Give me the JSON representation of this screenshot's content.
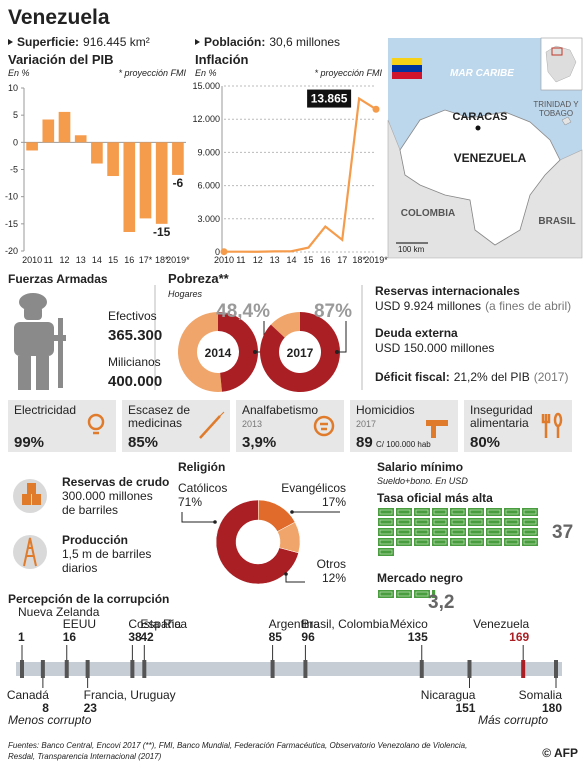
{
  "title": "Venezuela",
  "superficie": {
    "label": "Superficie:",
    "value": "916.445 km²"
  },
  "poblacion": {
    "label": "Población:",
    "value": "30,6 millones"
  },
  "chart_data": [
    {
      "type": "bar",
      "title": "Variación del PIB",
      "unit": "En %",
      "note": "* proyección FMI",
      "categories": [
        "2010",
        "11",
        "12",
        "13",
        "14",
        "15",
        "16",
        "17*",
        "18*",
        "2019*"
      ],
      "values": [
        -1.5,
        4.2,
        5.6,
        1.3,
        -3.9,
        -6.2,
        -16.5,
        -14,
        -15,
        -6
      ],
      "value_labels": [
        null,
        null,
        null,
        null,
        null,
        null,
        null,
        null,
        "-15",
        "-6"
      ],
      "color": "#f59b4c",
      "ylim": [
        -20,
        10
      ],
      "yticks": [
        -20,
        -15,
        -10,
        -5,
        0,
        5,
        10
      ]
    },
    {
      "type": "line",
      "title": "Inflación",
      "unit": "En %",
      "note": "* proyección FMI",
      "categories": [
        "2010",
        "11",
        "12",
        "13",
        "14",
        "15",
        "16",
        "17",
        "18*",
        "2019*"
      ],
      "values": [
        27,
        28,
        20,
        56,
        69,
        400,
        2300,
        1100,
        13865,
        12900
      ],
      "value_labels": [
        null,
        null,
        null,
        null,
        null,
        null,
        null,
        null,
        "13.865",
        null
      ],
      "color": "#f59b4c",
      "ylim": [
        0,
        15000
      ],
      "yticks": [
        0,
        {
          "value": 3000,
          "label": "3.000"
        },
        {
          "value": 6000,
          "label": "6.000"
        },
        {
          "value": 9000,
          "label": "9.000"
        },
        {
          "value": 12000,
          "label": "12.000"
        },
        {
          "value": 15000,
          "label": "15.000"
        }
      ],
      "grid": true
    },
    {
      "type": "ring",
      "title": "Pobreza**",
      "subtitle": "Hogares",
      "categories": [
        "2014",
        "2017"
      ],
      "values": [
        48.4,
        87
      ],
      "value_labels": [
        "48,4%",
        "87%"
      ],
      "color": "#a91f24",
      "rest_color": "#f0a56a"
    },
    {
      "type": "donut",
      "title": "Religión",
      "categories": [
        "Católicos",
        "Evangélicos",
        "Otros"
      ],
      "values": [
        71,
        17,
        12
      ],
      "value_labels": [
        "71%",
        "17%",
        "12%"
      ],
      "colors": [
        "#a91f24",
        "#e06b2b",
        "#f0a56a"
      ]
    },
    {
      "type": "pictogram",
      "title": "Salario mínimo",
      "subtitle": "Sueldo+bono. En USD",
      "categories": [
        "Tasa oficial más alta",
        "Mercado negro"
      ],
      "values": [
        37,
        3.2
      ],
      "value_labels": [
        "37",
        "3,2"
      ],
      "color": "#4a9d3f"
    },
    {
      "type": "scale",
      "title": "Percepción de la corrupción",
      "categories": [
        "Nueva Zelanda",
        "Canadá",
        "EEUU",
        "Francia, Uruguay",
        "Costa Rica",
        "España",
        "Argentina",
        "Brasil, Colombia",
        "México",
        "Nicaragua",
        "Venezuela",
        "Somalia"
      ],
      "values": [
        1,
        8,
        16,
        23,
        38,
        42,
        85,
        96,
        135,
        151,
        169,
        180
      ],
      "xlim": [
        1,
        180
      ],
      "low_label": "Menos corrupto",
      "high_label": "Más corrupto",
      "highlight": "Venezuela",
      "highlight_color": "#a91f24",
      "color": "#555555"
    }
  ],
  "fuerzas_armadas": {
    "title": "Fuerzas Armadas",
    "items": [
      {
        "label": "Efectivos",
        "value": "365.300"
      },
      {
        "label": "Milicianos",
        "value": "400.000"
      }
    ]
  },
  "economia": {
    "reservas": {
      "title": "Reservas internacionales",
      "value": "USD 9.924 millones",
      "note": "(a fines de abril)"
    },
    "deuda": {
      "title": "Deuda externa",
      "value": "USD 150.000 millones"
    },
    "deficit": {
      "title": "Déficit fiscal:",
      "value": "21,2% del PIB",
      "note": "(2017)"
    }
  },
  "indicators": [
    {
      "label": [
        "Electricidad"
      ],
      "value": "99%"
    },
    {
      "label": [
        "Escasez de",
        "medicinas"
      ],
      "value": "85%"
    },
    {
      "label": [
        "Analfabetismo"
      ],
      "year": "2013",
      "value": "3,9%"
    },
    {
      "label": [
        "Homicidios"
      ],
      "year": "2017",
      "value": "89",
      "unit": "C/ 100.000 hab"
    },
    {
      "label": [
        "Inseguridad",
        "alimentaria"
      ],
      "value": "80%"
    }
  ],
  "petroleo": [
    {
      "title": "Reservas de crudo",
      "lines": [
        "300.000 millones",
        "de barriles"
      ]
    },
    {
      "title": "Producción",
      "lines": [
        "1,5 m de barriles",
        "diarios"
      ]
    }
  ],
  "map": {
    "sea": "MAR CARIBE",
    "capital": "CARACAS",
    "trinidad": [
      "TRINIDAD Y",
      "TOBAGO"
    ],
    "country": "VENEZUELA",
    "colombia": "COLOMBIA",
    "brasil": "BRASIL",
    "scale": "100 km"
  },
  "sources": [
    "Fuentes: Banco Central, Encovi 2017 (**), FMI, Banco Mundial, Federación Farmacéutica, Observatorio Venezolano de Violencia,",
    "Resdal, Transparencia Internacional (2017)"
  ],
  "credit": "© AFP"
}
